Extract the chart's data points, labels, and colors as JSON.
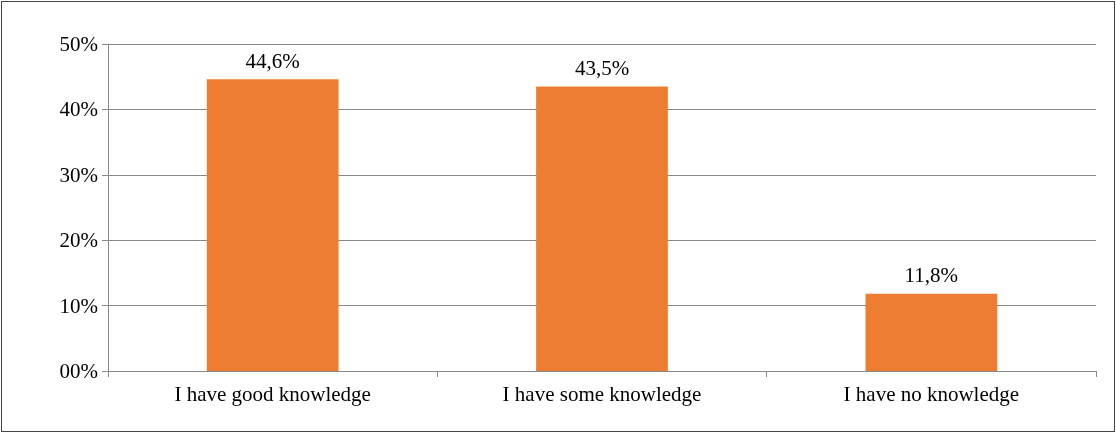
{
  "chart_data": {
    "type": "bar",
    "categories": [
      "I have good knowledge",
      "I have some knowledge",
      "I have no knowledge"
    ],
    "values": [
      44.6,
      43.5,
      11.8
    ],
    "value_labels": [
      "44,6%",
      "43,5%",
      "11,8%"
    ],
    "color": "#ed7d31",
    "ylim": [
      0,
      50
    ],
    "yticks": [
      {
        "value": 0,
        "label": "00%"
      },
      {
        "value": 10,
        "label": "10%"
      },
      {
        "value": 20,
        "label": "20%"
      },
      {
        "value": 30,
        "label": "30%"
      },
      {
        "value": 40,
        "label": "40%"
      },
      {
        "value": 50,
        "label": "50%"
      }
    ],
    "grid": "y"
  }
}
